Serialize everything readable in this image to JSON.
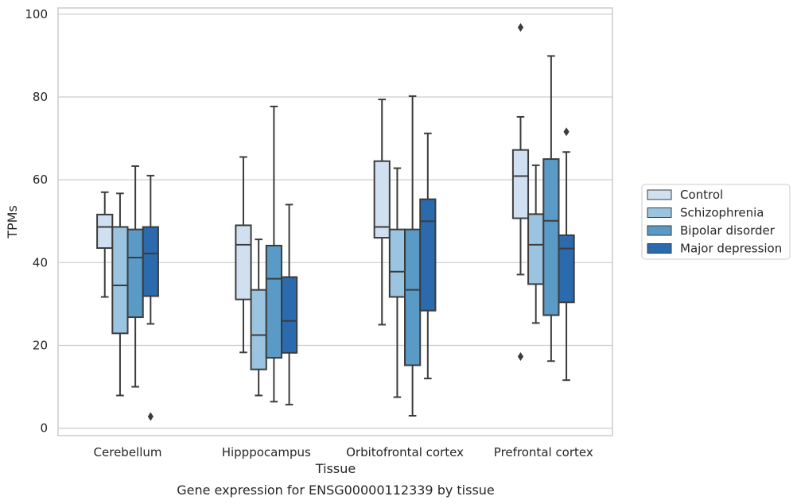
{
  "chart_data": {
    "type": "boxplot",
    "title": "Gene expression for ENSG00000112339 by tissue",
    "xlabel": "Tissue",
    "ylabel": "TPMs",
    "ylim": [
      -1.8,
      101.5
    ],
    "yticks": [
      0,
      20,
      40,
      60,
      80,
      100
    ],
    "grid": "horizontal",
    "legend_position": "right",
    "categories": [
      "Cerebellum",
      "Hipppocampus",
      "Orbitofrontal cortex",
      "Prefrontal cortex"
    ],
    "series": [
      {
        "name": "Control",
        "color": "#d0e0f0",
        "boxes": [
          {
            "whisker_low": 31.7,
            "q1": 43.5,
            "median": 48.6,
            "q3": 51.6,
            "whisker_high": 57.0,
            "outliers": []
          },
          {
            "whisker_low": 18.3,
            "q1": 31.1,
            "median": 44.3,
            "q3": 49.0,
            "whisker_high": 65.5,
            "outliers": []
          },
          {
            "whisker_low": 25.0,
            "q1": 46.0,
            "median": 48.6,
            "q3": 64.5,
            "whisker_high": 79.4,
            "outliers": []
          },
          {
            "whisker_low": 37.1,
            "q1": 50.7,
            "median": 60.9,
            "q3": 67.2,
            "whisker_high": 75.2,
            "outliers": [
              96.8,
              17.3
            ]
          }
        ]
      },
      {
        "name": "Schizophrenia",
        "color": "#9ac4df",
        "boxes": [
          {
            "whisker_low": 7.9,
            "q1": 22.9,
            "median": 34.5,
            "q3": 48.6,
            "whisker_high": 56.7,
            "outliers": []
          },
          {
            "whisker_low": 7.9,
            "q1": 14.2,
            "median": 22.5,
            "q3": 33.4,
            "whisker_high": 45.6,
            "outliers": []
          },
          {
            "whisker_low": 7.5,
            "q1": 31.7,
            "median": 37.8,
            "q3": 48.0,
            "whisker_high": 62.8,
            "outliers": []
          },
          {
            "whisker_low": 25.4,
            "q1": 34.8,
            "median": 44.3,
            "q3": 51.7,
            "whisker_high": 63.5,
            "outliers": []
          }
        ]
      },
      {
        "name": "Bipolar disorder",
        "color": "#5a9ac6",
        "boxes": [
          {
            "whisker_low": 10.0,
            "q1": 26.8,
            "median": 41.2,
            "q3": 48.0,
            "whisker_high": 63.3,
            "outliers": []
          },
          {
            "whisker_low": 6.4,
            "q1": 17.0,
            "median": 36.1,
            "q3": 44.1,
            "whisker_high": 77.7,
            "outliers": []
          },
          {
            "whisker_low": 3.0,
            "q1": 15.2,
            "median": 33.4,
            "q3": 48.0,
            "whisker_high": 80.2,
            "outliers": []
          },
          {
            "whisker_low": 16.2,
            "q1": 27.3,
            "median": 50.1,
            "q3": 65.0,
            "whisker_high": 89.9,
            "outliers": []
          }
        ]
      },
      {
        "name": "Major depression",
        "color": "#2b6aad",
        "boxes": [
          {
            "whisker_low": 25.2,
            "q1": 31.9,
            "median": 42.2,
            "q3": 48.6,
            "whisker_high": 61.0,
            "outliers": [
              2.8
            ]
          },
          {
            "whisker_low": 5.7,
            "q1": 18.2,
            "median": 25.9,
            "q3": 36.5,
            "whisker_high": 54.0,
            "outliers": []
          },
          {
            "whisker_low": 12.0,
            "q1": 28.4,
            "median": 50.0,
            "q3": 55.3,
            "whisker_high": 71.2,
            "outliers": []
          },
          {
            "whisker_low": 11.6,
            "q1": 30.4,
            "median": 43.4,
            "q3": 46.6,
            "whisker_high": 66.7,
            "outliers": [
              71.6
            ]
          }
        ]
      }
    ]
  }
}
